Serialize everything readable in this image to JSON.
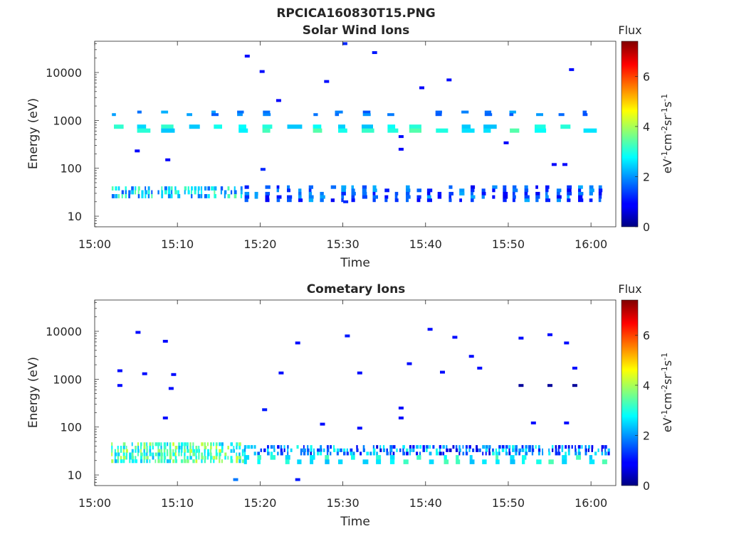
{
  "figure": {
    "title": "RPCICA160830T15.PNG"
  },
  "chart_data": [
    {
      "type": "heatmap",
      "title": "Solar Wind Ions",
      "xlabel": "Time",
      "ylabel": "Energy (eV)",
      "x_ticks": [
        "15:00",
        "15:10",
        "15:20",
        "15:30",
        "15:40",
        "15:50",
        "16:00"
      ],
      "xlim": [
        "15:00",
        "16:03"
      ],
      "y_scale": "log",
      "y_ticks": [
        10,
        100,
        1000,
        10000
      ],
      "y_tick_labels": [
        "10",
        "100",
        "1000",
        "10000"
      ],
      "ylim": [
        6,
        45000
      ],
      "colorbar": {
        "label": "Flux",
        "unit": "eV-1cm-2sr-1s-1",
        "range": [
          0,
          7.4
        ],
        "ticks": [
          "0",
          "2",
          "4",
          "6"
        ]
      },
      "bands": [
        {
          "t_start": "15:02",
          "t_end": "16:02",
          "e_low": 560,
          "e_high": 820,
          "flux_range": [
            2.3,
            3.4
          ],
          "period_min": 3.0,
          "duty": 0.55
        },
        {
          "t_start": "15:02",
          "t_end": "16:02",
          "e_low": 1250,
          "e_high": 1600,
          "flux_range": [
            1.4,
            2.2
          ],
          "period_min": 3.0,
          "duty": 0.3
        },
        {
          "t_start": "15:02",
          "t_end": "15:18",
          "e_low": 24,
          "e_high": 42,
          "flux_range": [
            1.5,
            3.5
          ],
          "period_min": 0.4,
          "duty": 0.8
        },
        {
          "t_start": "15:18",
          "t_end": "16:02",
          "e_low": 20,
          "e_high": 44,
          "flux_range": [
            0.8,
            2.2
          ],
          "period_min": 1.3,
          "duty": 0.45
        }
      ],
      "sparse_points": [
        {
          "t": "15:18.4",
          "e": 22000,
          "flux": 1.0
        },
        {
          "t": "15:20.2",
          "e": 10500,
          "flux": 1.0
        },
        {
          "t": "15:30.2",
          "e": 40000,
          "flux": 1.2
        },
        {
          "t": "15:33.8",
          "e": 26000,
          "flux": 1.1
        },
        {
          "t": "15:28.0",
          "e": 6500,
          "flux": 1.0
        },
        {
          "t": "15:42.8",
          "e": 7000,
          "flux": 1.0
        },
        {
          "t": "15:57.6",
          "e": 11500,
          "flux": 1.0
        },
        {
          "t": "15:39.5",
          "e": 4800,
          "flux": 0.9
        },
        {
          "t": "15:22.2",
          "e": 2600,
          "flux": 0.9
        },
        {
          "t": "15:20.3",
          "e": 95,
          "flux": 1.2
        },
        {
          "t": "15:08.8",
          "e": 150,
          "flux": 0.9
        },
        {
          "t": "15:05.1",
          "e": 230,
          "flux": 0.9
        },
        {
          "t": "15:37.0",
          "e": 250,
          "flux": 0.9
        },
        {
          "t": "15:55.5",
          "e": 120,
          "flux": 0.9
        },
        {
          "t": "15:56.8",
          "e": 120,
          "flux": 0.9
        },
        {
          "t": "15:49.7",
          "e": 340,
          "flux": 0.9
        },
        {
          "t": "15:30.3",
          "e": 20,
          "flux": 1.2
        },
        {
          "t": "15:37.0",
          "e": 460,
          "flux": 1.0
        }
      ]
    },
    {
      "type": "heatmap",
      "title": "Cometary Ions",
      "xlabel": "Time",
      "ylabel": "Energy (eV)",
      "x_ticks": [
        "15:00",
        "15:10",
        "15:20",
        "15:30",
        "15:40",
        "15:50",
        "16:00"
      ],
      "xlim": [
        "15:00",
        "16:03"
      ],
      "y_scale": "log",
      "y_ticks": [
        10,
        100,
        1000,
        10000
      ],
      "y_tick_labels": [
        "10",
        "100",
        "1000",
        "10000"
      ],
      "ylim": [
        6,
        45000
      ],
      "colorbar": {
        "label": "Flux",
        "unit": "eV-1cm-2sr-1s-1",
        "range": [
          0,
          7.4
        ],
        "ticks": [
          "0",
          "2",
          "4",
          "6"
        ]
      },
      "bands": [
        {
          "t_start": "15:02",
          "t_end": "15:18",
          "e_low": 18,
          "e_high": 48,
          "flux_range": [
            2.2,
            4.4
          ],
          "period_min": 0.35,
          "duty": 0.85
        },
        {
          "t_start": "15:18",
          "t_end": "16:02",
          "e_low": 26,
          "e_high": 42,
          "flux_range": [
            0.6,
            3.0
          ],
          "period_min": 0.4,
          "duty": 0.8
        },
        {
          "t_start": "15:18",
          "t_end": "16:02",
          "e_low": 17,
          "e_high": 26,
          "flux_range": [
            2.3,
            3.4
          ],
          "period_min": 1.6,
          "duty": 0.4
        }
      ],
      "sparse_points": [
        {
          "t": "15:05.2",
          "e": 9500,
          "flux": 1.0
        },
        {
          "t": "15:08.5",
          "e": 6200,
          "flux": 1.0
        },
        {
          "t": "15:30.5",
          "e": 8000,
          "flux": 1.1
        },
        {
          "t": "15:24.5",
          "e": 5700,
          "flux": 1.0
        },
        {
          "t": "15:40.5",
          "e": 11000,
          "flux": 1.0
        },
        {
          "t": "15:43.5",
          "e": 7500,
          "flux": 1.0
        },
        {
          "t": "15:45.5",
          "e": 3000,
          "flux": 1.0
        },
        {
          "t": "15:46.5",
          "e": 1700,
          "flux": 1.0
        },
        {
          "t": "15:51.5",
          "e": 7200,
          "flux": 1.0
        },
        {
          "t": "15:55.0",
          "e": 8500,
          "flux": 1.0
        },
        {
          "t": "15:57.0",
          "e": 5700,
          "flux": 1.0
        },
        {
          "t": "15:58.0",
          "e": 1700,
          "flux": 1.0
        },
        {
          "t": "15:03.0",
          "e": 1500,
          "flux": 1.0
        },
        {
          "t": "15:06.0",
          "e": 1300,
          "flux": 1.0
        },
        {
          "t": "15:09.5",
          "e": 1250,
          "flux": 1.0
        },
        {
          "t": "15:22.5",
          "e": 1350,
          "flux": 1.0
        },
        {
          "t": "15:32.0",
          "e": 1350,
          "flux": 1.0
        },
        {
          "t": "15:38.0",
          "e": 2100,
          "flux": 1.0
        },
        {
          "t": "15:42.0",
          "e": 1400,
          "flux": 1.0
        },
        {
          "t": "15:51.5",
          "e": 740,
          "flux": 0.2
        },
        {
          "t": "15:55.0",
          "e": 740,
          "flux": 0.2
        },
        {
          "t": "15:58.0",
          "e": 740,
          "flux": 0.2
        },
        {
          "t": "15:20.5",
          "e": 230,
          "flux": 1.1
        },
        {
          "t": "15:37.0",
          "e": 250,
          "flux": 1.0
        },
        {
          "t": "15:37.0",
          "e": 155,
          "flux": 1.0
        },
        {
          "t": "15:27.5",
          "e": 115,
          "flux": 1.0
        },
        {
          "t": "15:32.0",
          "e": 95,
          "flux": 1.0
        },
        {
          "t": "15:53.0",
          "e": 122,
          "flux": 1.0
        },
        {
          "t": "15:57.0",
          "e": 122,
          "flux": 1.0
        },
        {
          "t": "15:08.5",
          "e": 155,
          "flux": 1.0
        },
        {
          "t": "15:24.5",
          "e": 8,
          "flux": 1.1
        },
        {
          "t": "15:17.0",
          "e": 8,
          "flux": 1.8
        },
        {
          "t": "15:09.2",
          "e": 640,
          "flux": 1.0
        },
        {
          "t": "15:03.0",
          "e": 740,
          "flux": 1.0
        }
      ]
    }
  ]
}
